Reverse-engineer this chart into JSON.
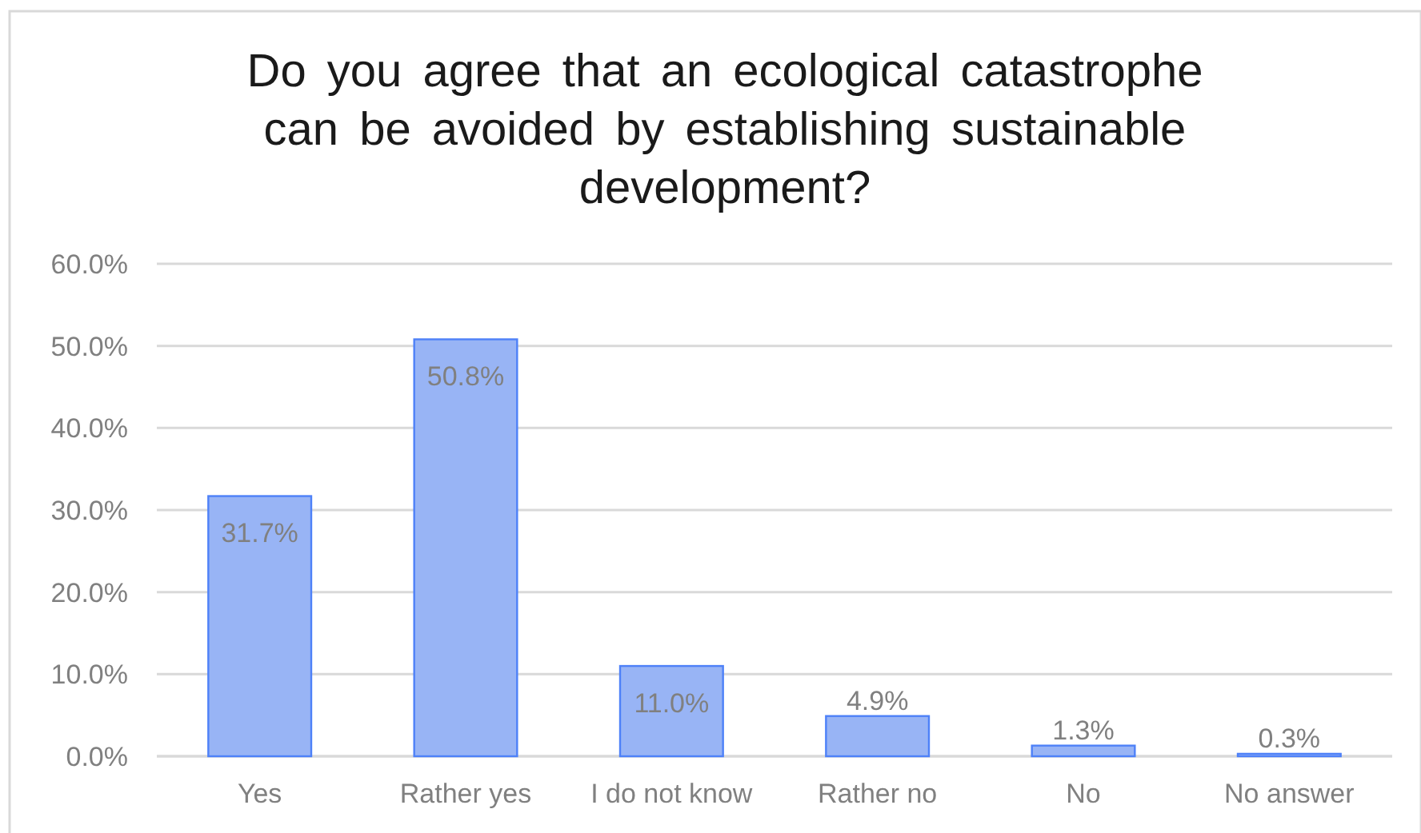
{
  "chart_data": {
    "type": "bar",
    "title": "Do you agree that an ecological catastrophe can be avoided by establishing sustainable development?",
    "categories": [
      "Yes",
      "Rather yes",
      "I do not know",
      "Rather no",
      "No",
      "No answer"
    ],
    "values": [
      31.7,
      50.8,
      11.0,
      4.9,
      1.3,
      0.3
    ],
    "value_labels": [
      "31.7%",
      "50.8%",
      "11.0%",
      "4.9%",
      "1.3%",
      "0.3%"
    ],
    "color": "#98b4f5",
    "ylim": [
      0,
      60
    ],
    "yticks": [
      {
        "value": 0,
        "label": "0.0%"
      },
      {
        "value": 10,
        "label": "10.0%"
      },
      {
        "value": 20,
        "label": "20.0%"
      },
      {
        "value": 30,
        "label": "30.0%"
      },
      {
        "value": 40,
        "label": "40.0%"
      },
      {
        "value": 50,
        "label": "50.0%"
      },
      {
        "value": 60,
        "label": "60.0%"
      }
    ],
    "grid": "y"
  }
}
